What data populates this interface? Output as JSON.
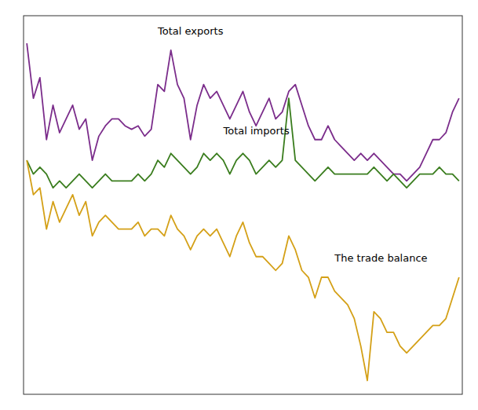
{
  "chart_data": {
    "type": "line",
    "x": [
      0,
      1,
      2,
      3,
      4,
      5,
      6,
      7,
      8,
      9,
      10,
      11,
      12,
      13,
      14,
      15,
      16,
      17,
      18,
      19,
      20,
      21,
      22,
      23,
      24,
      25,
      26,
      27,
      28,
      29,
      30,
      31,
      32,
      33,
      34,
      35,
      36,
      37,
      38,
      39,
      40,
      41,
      42,
      43,
      44,
      45,
      46,
      47,
      48,
      49,
      50,
      51,
      52,
      53,
      54,
      55,
      56,
      57,
      58,
      59,
      60,
      61,
      62,
      63,
      64,
      65,
      66
    ],
    "series": [
      {
        "color": "#7B2D8B",
        "values": [
          100,
          84,
          90,
          72,
          82,
          74,
          78,
          82,
          75,
          78,
          66,
          73,
          76,
          78,
          78,
          76,
          75,
          76,
          73,
          75,
          88,
          86,
          98,
          88,
          84,
          72,
          82,
          88,
          84,
          86,
          82,
          78,
          82,
          86,
          80,
          76,
          80,
          84,
          78,
          80,
          86,
          88,
          82,
          76,
          72,
          72,
          76,
          72,
          70,
          68,
          66,
          68,
          66,
          68,
          66,
          64,
          62,
          62,
          60,
          62,
          64,
          68,
          72,
          72,
          74,
          80,
          84
        ]
      },
      {
        "color": "#3A7D1E",
        "values": [
          66,
          62,
          64,
          62,
          58,
          60,
          58,
          60,
          62,
          60,
          58,
          60,
          62,
          60,
          60,
          60,
          60,
          62,
          60,
          62,
          66,
          64,
          68,
          66,
          64,
          62,
          64,
          68,
          66,
          68,
          66,
          62,
          66,
          68,
          66,
          62,
          64,
          66,
          64,
          66,
          84,
          66,
          64,
          62,
          60,
          62,
          64,
          62,
          62,
          62,
          62,
          62,
          62,
          64,
          62,
          60,
          62,
          60,
          58,
          60,
          62,
          62,
          62,
          64,
          62,
          62,
          60
        ]
      },
      {
        "color": "#D4A017",
        "values": [
          66,
          56,
          58,
          46,
          54,
          48,
          52,
          56,
          50,
          54,
          44,
          48,
          50,
          48,
          46,
          46,
          46,
          48,
          44,
          46,
          46,
          44,
          50,
          46,
          44,
          40,
          44,
          46,
          44,
          46,
          42,
          38,
          44,
          48,
          42,
          38,
          38,
          36,
          34,
          36,
          44,
          40,
          34,
          32,
          26,
          32,
          32,
          28,
          26,
          24,
          20,
          12,
          2,
          22,
          20,
          16,
          16,
          12,
          10,
          12,
          14,
          16,
          18,
          18,
          20,
          26,
          32
        ]
      }
    ],
    "annotations": [
      {
        "text": "Total exports",
        "x": 20,
        "y": 102
      },
      {
        "text": "Total imports",
        "x": 30,
        "y": 73
      },
      {
        "text": "The trade balance",
        "x": 47,
        "y": 36
      }
    ],
    "xlim": [
      -0.5,
      66.5
    ],
    "ylim": [
      -2,
      108
    ],
    "tick_labels": false,
    "grid": false
  }
}
